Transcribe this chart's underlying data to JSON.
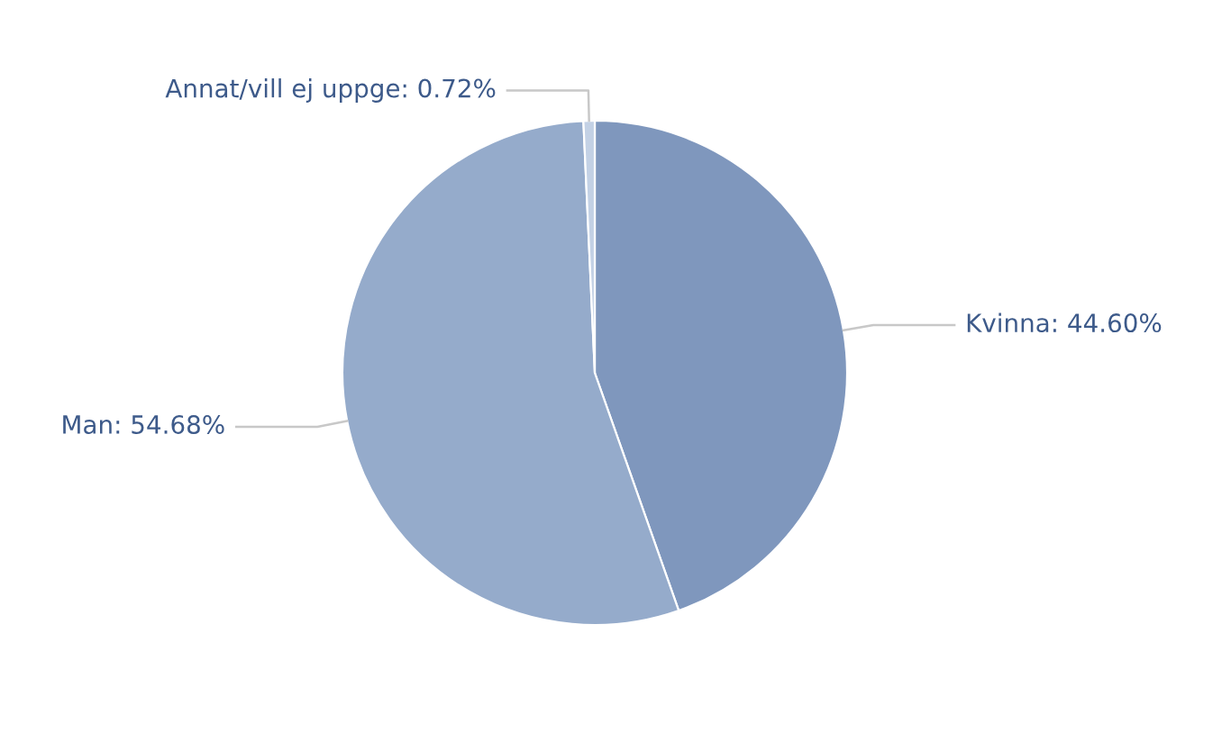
{
  "chart_data": {
    "type": "pie",
    "categories": [
      "Kvinna",
      "Man",
      "Annat/vill ej uppge"
    ],
    "values": [
      44.6,
      54.68,
      0.72
    ],
    "value_labels": [
      "44.60%",
      "54.68%",
      "0.72%"
    ],
    "colors": [
      "#7f97bd",
      "#95abcb",
      "#c3d1e5"
    ],
    "legend": false
  }
}
